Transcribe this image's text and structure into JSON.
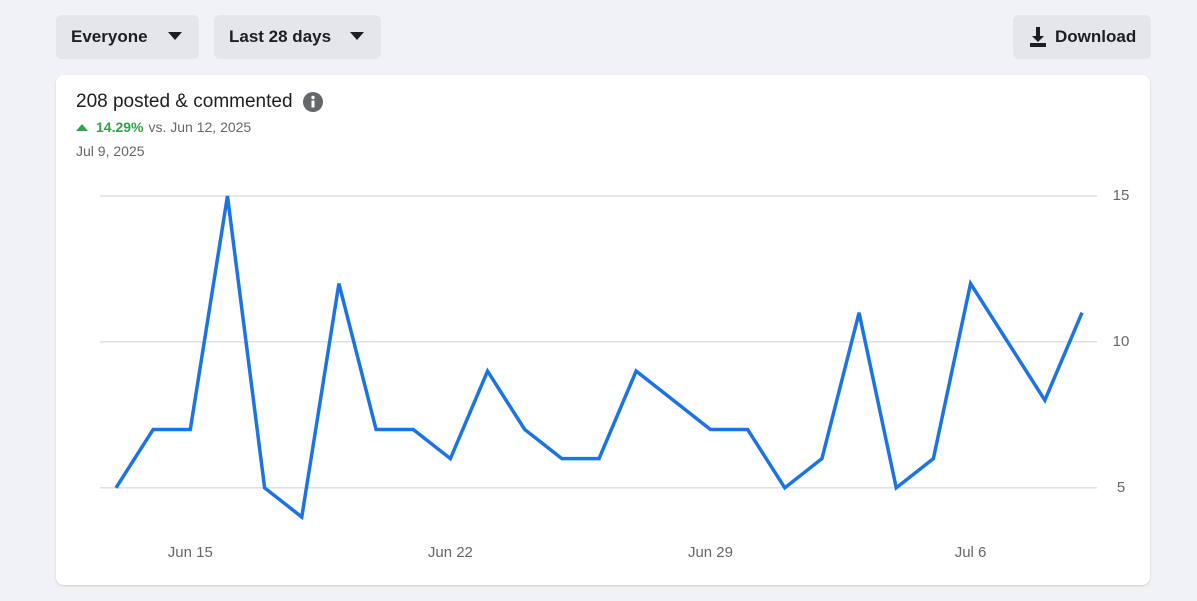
{
  "filters": {
    "audience": "Everyone",
    "range": "Last 28 days",
    "download": "Download"
  },
  "summary": {
    "title": "208 posted & commented",
    "change": "14.29%",
    "comparison": "vs. Jun 12, 2025",
    "date": "Jul 9, 2025"
  },
  "chart_data": {
    "type": "line",
    "categories": [
      null,
      null,
      "Jun 15",
      null,
      null,
      null,
      null,
      null,
      null,
      "Jun 22",
      null,
      null,
      null,
      null,
      null,
      null,
      "Jun 29",
      null,
      null,
      null,
      null,
      null,
      null,
      "Jul 6",
      null,
      null,
      null
    ],
    "series": [
      {
        "color": "#1b74e4",
        "values": [
          5,
          7,
          7,
          15,
          5,
          4,
          12,
          7,
          7,
          6,
          9,
          7,
          6,
          6,
          9,
          8,
          7,
          7,
          5,
          6,
          11,
          5,
          6,
          12,
          10,
          8,
          11
        ]
      }
    ],
    "ylim": [
      4,
      15
    ],
    "yticks": [
      5,
      10,
      15
    ],
    "grid": true
  }
}
